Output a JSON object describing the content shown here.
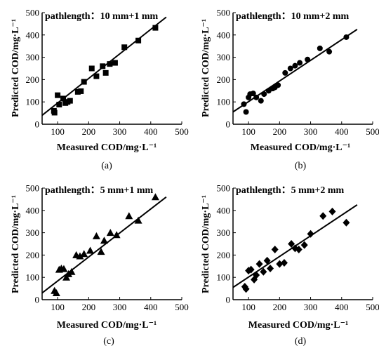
{
  "chart_data": [
    {
      "type": "scatter",
      "panel_label": "(a)",
      "annotation": "pathlength：10 mm+1 mm",
      "xlabel": "Measured COD/mg·L⁻¹",
      "ylabel": "Predicted COD/mg·L⁻¹",
      "xlim": [
        50,
        500
      ],
      "ylim": [
        0,
        500
      ],
      "xticks": [
        100,
        200,
        300,
        400,
        500
      ],
      "yticks": [
        0,
        100,
        200,
        300,
        400,
        500
      ],
      "marker": "square",
      "points": [
        [
          88,
          60
        ],
        [
          90,
          52
        ],
        [
          100,
          130
        ],
        [
          105,
          88
        ],
        [
          118,
          115
        ],
        [
          125,
          95
        ],
        [
          132,
          100
        ],
        [
          140,
          105
        ],
        [
          165,
          145
        ],
        [
          175,
          148
        ],
        [
          185,
          190
        ],
        [
          210,
          250
        ],
        [
          225,
          215
        ],
        [
          245,
          260
        ],
        [
          255,
          230
        ],
        [
          268,
          270
        ],
        [
          285,
          275
        ],
        [
          315,
          345
        ],
        [
          360,
          375
        ],
        [
          415,
          432
        ]
      ],
      "fit_line": [
        [
          50,
          40
        ],
        [
          450,
          480
        ]
      ]
    },
    {
      "type": "scatter",
      "panel_label": "(b)",
      "annotation": "pathlength：10 mm+2 mm",
      "xlabel": "Measured COD/mg·L⁻¹",
      "ylabel": "Predicted COD/mg·L⁻¹",
      "xlim": [
        50,
        500
      ],
      "ylim": [
        0,
        500
      ],
      "xticks": [
        100,
        200,
        300,
        400,
        500
      ],
      "yticks": [
        0,
        100,
        200,
        300,
        400,
        500
      ],
      "marker": "circle",
      "points": [
        [
          85,
          90
        ],
        [
          92,
          55
        ],
        [
          100,
          120
        ],
        [
          105,
          135
        ],
        [
          115,
          138
        ],
        [
          125,
          120
        ],
        [
          140,
          105
        ],
        [
          150,
          135
        ],
        [
          165,
          150
        ],
        [
          178,
          160
        ],
        [
          185,
          165
        ],
        [
          195,
          175
        ],
        [
          218,
          230
        ],
        [
          235,
          250
        ],
        [
          250,
          262
        ],
        [
          265,
          275
        ],
        [
          290,
          290
        ],
        [
          330,
          340
        ],
        [
          360,
          325
        ],
        [
          415,
          390
        ]
      ],
      "fit_line": [
        [
          50,
          55
        ],
        [
          450,
          425
        ]
      ]
    },
    {
      "type": "scatter",
      "panel_label": "(c)",
      "annotation": "pathlength：5 mm+1 mm",
      "xlabel": "Measured COD/mg·L⁻¹",
      "ylabel": "Predicted COD/mg·L⁻¹",
      "xlim": [
        50,
        500
      ],
      "ylim": [
        0,
        500
      ],
      "xticks": [
        100,
        200,
        300,
        400,
        500
      ],
      "yticks": [
        0,
        100,
        200,
        300,
        400,
        500
      ],
      "marker": "triangle",
      "points": [
        [
          90,
          40
        ],
        [
          96,
          30
        ],
        [
          105,
          135
        ],
        [
          112,
          140
        ],
        [
          120,
          138
        ],
        [
          128,
          100
        ],
        [
          135,
          115
        ],
        [
          145,
          125
        ],
        [
          160,
          200
        ],
        [
          172,
          195
        ],
        [
          185,
          205
        ],
        [
          205,
          220
        ],
        [
          225,
          285
        ],
        [
          240,
          215
        ],
        [
          250,
          265
        ],
        [
          270,
          300
        ],
        [
          290,
          290
        ],
        [
          330,
          375
        ],
        [
          360,
          355
        ],
        [
          415,
          460
        ]
      ],
      "fit_line": [
        [
          50,
          30
        ],
        [
          450,
          460
        ]
      ]
    },
    {
      "type": "scatter",
      "panel_label": "(d)",
      "annotation": "pathlength：5 mm+2 mm",
      "xlabel": "Measured COD/mg·L⁻¹",
      "ylabel": "Predicted COD/mg·L⁻¹",
      "xlim": [
        50,
        500
      ],
      "ylim": [
        0,
        500
      ],
      "xticks": [
        100,
        200,
        300,
        400,
        500
      ],
      "yticks": [
        0,
        100,
        200,
        300,
        400,
        500
      ],
      "marker": "diamond",
      "points": [
        [
          88,
          58
        ],
        [
          92,
          48
        ],
        [
          100,
          130
        ],
        [
          108,
          135
        ],
        [
          118,
          90
        ],
        [
          125,
          110
        ],
        [
          135,
          160
        ],
        [
          148,
          125
        ],
        [
          160,
          175
        ],
        [
          170,
          140
        ],
        [
          185,
          225
        ],
        [
          200,
          160
        ],
        [
          215,
          165
        ],
        [
          238,
          250
        ],
        [
          250,
          230
        ],
        [
          262,
          225
        ],
        [
          280,
          245
        ],
        [
          300,
          295
        ],
        [
          340,
          375
        ],
        [
          370,
          395
        ],
        [
          415,
          345
        ]
      ],
      "fit_line": [
        [
          50,
          55
        ],
        [
          450,
          425
        ]
      ]
    }
  ]
}
